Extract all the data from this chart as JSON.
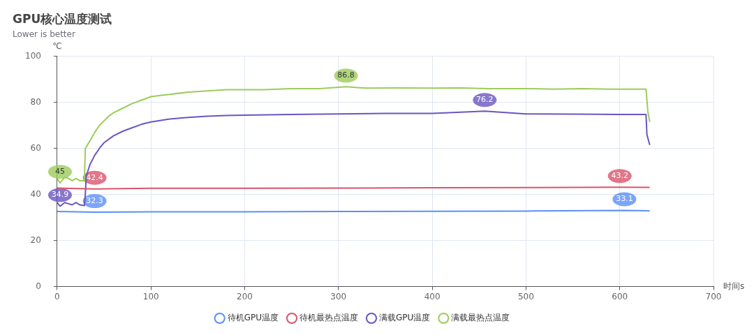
{
  "chart_data": {
    "type": "line",
    "title": "GPU核心温度测试",
    "subtitle": "Lower is better",
    "xlabel": "时间s",
    "ylabel": "℃",
    "xlim": [
      0,
      700
    ],
    "xticks": [
      0,
      100,
      200,
      300,
      400,
      500,
      600,
      700
    ],
    "ylim": [
      0,
      100
    ],
    "yticks": [
      0,
      20,
      40,
      60,
      80,
      100
    ],
    "grid": true,
    "legend": "bottom",
    "marker": "none",
    "line_style": "solid",
    "series": [
      {
        "name": "待机GPU温度",
        "color": "#5b8ff9",
        "x": [
          0,
          40,
          100,
          200,
          300,
          400,
          500,
          605,
          632
        ],
        "values": [
          32.6,
          32.3,
          32.5,
          32.5,
          32.6,
          32.7,
          32.8,
          33.1,
          32.9
        ],
        "value_labels": [
          null,
          "32.3",
          null,
          null,
          null,
          null,
          null,
          "33.1",
          null
        ]
      },
      {
        "name": "待机最热点温度",
        "color": "#d9546a",
        "x": [
          0,
          40,
          100,
          200,
          300,
          400,
          500,
          600,
          632
        ],
        "values": [
          42.8,
          42.4,
          42.7,
          42.7,
          42.8,
          42.9,
          43,
          43.2,
          43.1
        ],
        "value_labels": [
          null,
          "42.4",
          null,
          null,
          null,
          null,
          null,
          "43.2",
          null
        ]
      },
      {
        "name": "满载GPU温度",
        "color": "#6a55c2",
        "x": [
          0,
          3,
          8,
          12,
          16,
          20,
          24,
          29,
          30,
          31,
          35,
          40,
          45,
          50,
          60,
          70,
          80,
          90,
          100,
          120,
          140,
          160,
          180,
          200,
          250,
          300,
          350,
          400,
          456,
          500,
          550,
          600,
          628,
          629,
          632
        ],
        "values": [
          36.5,
          34.9,
          36.5,
          36,
          35.5,
          36.5,
          35.5,
          35.2,
          40,
          48,
          53,
          57,
          60,
          62.5,
          65.5,
          67.5,
          69,
          70.5,
          71.5,
          72.8,
          73.5,
          74,
          74.3,
          74.5,
          74.8,
          75,
          75.2,
          75.2,
          76.2,
          75,
          74.9,
          74.8,
          74.8,
          66,
          61.5
        ],
        "value_labels": [
          null,
          "34.9",
          null,
          null,
          null,
          null,
          null,
          null,
          null,
          null,
          null,
          null,
          null,
          null,
          null,
          null,
          null,
          null,
          null,
          null,
          null,
          null,
          null,
          null,
          null,
          null,
          null,
          null,
          "76.2",
          null,
          null,
          null,
          null,
          null,
          null
        ]
      },
      {
        "name": "满载最热点温度",
        "color": "#9ccc5a",
        "x": [
          0,
          3,
          8,
          12,
          16,
          20,
          24,
          29,
          30,
          33,
          36,
          40,
          45,
          50,
          55,
          60,
          70,
          80,
          90,
          100,
          110,
          120,
          140,
          160,
          180,
          200,
          220,
          250,
          280,
          308,
          330,
          360,
          400,
          430,
          460,
          500,
          530,
          560,
          590,
          620,
          628,
          630,
          632
        ],
        "values": [
          47,
          45,
          47.5,
          47,
          46,
          47,
          46,
          46,
          60,
          62,
          64,
          67,
          70,
          72,
          74,
          75.5,
          77.5,
          79.5,
          81,
          82.5,
          83,
          83.5,
          84.5,
          85,
          85.5,
          85.5,
          85.5,
          86,
          86,
          86.8,
          86.2,
          86.3,
          86.2,
          86.3,
          86,
          86,
          85.8,
          86,
          85.8,
          85.8,
          85.8,
          76,
          71.5
        ],
        "value_labels": [
          null,
          "45",
          null,
          null,
          null,
          null,
          null,
          null,
          null,
          null,
          null,
          null,
          null,
          null,
          null,
          null,
          null,
          null,
          null,
          null,
          null,
          null,
          null,
          null,
          null,
          null,
          null,
          null,
          null,
          "86.8",
          null,
          null,
          null,
          null,
          null,
          null,
          null,
          null,
          null,
          null,
          null,
          null,
          null
        ]
      }
    ]
  }
}
